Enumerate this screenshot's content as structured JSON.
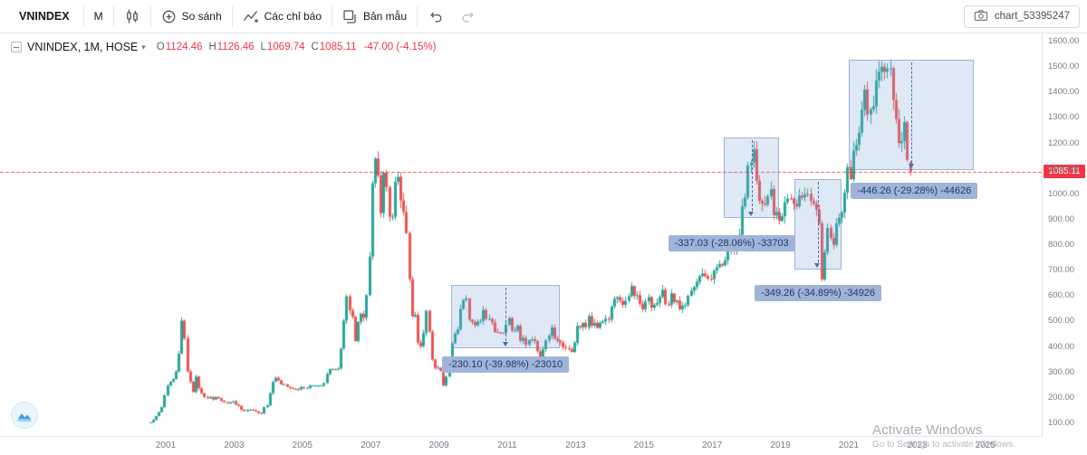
{
  "toolbar": {
    "symbol": "VNINDEX",
    "interval": "M",
    "compare_label": "So sánh",
    "indicators_label": "Các chỉ báo",
    "templates_label": "Bản mẫu",
    "chart_name": "chart_53395247"
  },
  "legend": {
    "title": "VNINDEX, 1M, HOSE",
    "o_label": "O",
    "o_value": "1124.46",
    "h_label": "H",
    "h_value": "1126.46",
    "l_label": "L",
    "l_value": "1069.74",
    "c_label": "C",
    "c_value": "1085.11",
    "change": "-47.00 (-4.15%)"
  },
  "price_axis": {
    "ticks": [
      "1600.00",
      "1500.00",
      "1400.00",
      "1300.00",
      "1200.00",
      "1100.00",
      "1000.00",
      "900.00",
      "800.00",
      "700.00",
      "600.00",
      "500.00",
      "400.00",
      "300.00",
      "200.00",
      "100.00"
    ],
    "last_price_label": "1085.11"
  },
  "time_axis": {
    "ticks": [
      "2001",
      "2003",
      "2005",
      "2007",
      "2009",
      "2011",
      "2013",
      "2015",
      "2017",
      "2019",
      "2021",
      "2023",
      "2025"
    ]
  },
  "watermark": {
    "line1": "Activate Windows",
    "line2": "Go to Settings to activate Windows."
  },
  "colors": {
    "up": "#26a69a",
    "down": "#ef5350",
    "last_price": "#f23645",
    "measure_box_fill": "rgba(120,157,214,0.24)",
    "measure_box_border": "rgba(83,118,178,0.45)",
    "measure_label_bg": "#9fb4d8",
    "measure_label_text": "#21386b",
    "axis_text": "#787b86"
  },
  "chart_data": {
    "type": "candlestick",
    "symbol": "VNINDEX",
    "exchange": "HOSE",
    "interval": "1M",
    "start_month": "2000-07",
    "first_open": 100,
    "price_axis_range": [
      100,
      1600
    ],
    "price_axis_step": 100,
    "x_axis_years": [
      2001,
      2003,
      2005,
      2007,
      2009,
      2011,
      2013,
      2015,
      2017,
      2019,
      2021,
      2023,
      2025
    ],
    "last_price_line": 1085.11,
    "last_candle": {
      "open": 1124.46,
      "high": 1126.46,
      "low": 1069.74,
      "close": 1085.11,
      "change": -47.0,
      "change_pct": -4.15
    },
    "monthly_closes_estimated": [
      {
        "year": 2000,
        "closes": [
          100,
          110,
          125,
          140,
          160,
          207
        ]
      },
      {
        "year": 2001,
        "closes": [
          245,
          260,
          270,
          300,
          370,
          500,
          430,
          300,
          260,
          220,
          280,
          235
        ]
      },
      {
        "year": 2002,
        "closes": [
          215,
          200,
          195,
          200,
          190,
          200,
          195,
          185,
          180,
          175,
          180,
          183
        ]
      },
      {
        "year": 2003,
        "closes": [
          170,
          165,
          150,
          145,
          150,
          150,
          148,
          143,
          137,
          135,
          160,
          167
        ]
      },
      {
        "year": 2004,
        "closes": [
          215,
          260,
          275,
          265,
          250,
          250,
          240,
          235,
          233,
          230,
          230,
          239
        ]
      },
      {
        "year": 2005,
        "closes": [
          235,
          235,
          245,
          245,
          245,
          245,
          245,
          255,
          290,
          310,
          310,
          308
        ]
      },
      {
        "year": 2006,
        "closes": [
          312,
          390,
          500,
          595,
          540,
          515,
          420,
          495,
          527,
          511,
          600,
          752
        ]
      },
      {
        "year": 2007,
        "closes": [
          1040,
          1137,
          1071,
          923,
          1081,
          1025,
          908,
          908,
          1046,
          1065,
          972,
          927
        ]
      },
      {
        "year": 2008,
        "closes": [
          844,
          663,
          516,
          522,
          414,
          399,
          451,
          539,
          456,
          347,
          314,
          315
        ]
      },
      {
        "year": 2009,
        "closes": [
          303,
          245,
          280,
          321,
          411,
          448,
          466,
          546,
          580,
          587,
          504,
          494
        ]
      },
      {
        "year": 2010,
        "closes": [
          482,
          496,
          499,
          542,
          507,
          507,
          493,
          455,
          454,
          452,
          451,
          484
        ]
      },
      {
        "year": 2011,
        "closes": [
          510,
          461,
          461,
          480,
          421,
          432,
          405,
          424,
          427,
          420,
          380,
          351
        ]
      },
      {
        "year": 2012,
        "closes": [
          388,
          423,
          441,
          473,
          429,
          422,
          414,
          396,
          392,
          388,
          377,
          413
        ]
      },
      {
        "year": 2013,
        "closes": [
          479,
          474,
          491,
          474,
          518,
          481,
          491,
          472,
          492,
          497,
          508,
          504
        ]
      },
      {
        "year": 2014,
        "closes": [
          556,
          586,
          592,
          578,
          562,
          578,
          596,
          636,
          598,
          600,
          566,
          545
        ]
      },
      {
        "year": 2015,
        "closes": [
          576,
          592,
          551,
          562,
          569,
          593,
          621,
          564,
          562,
          607,
          573,
          579
        ]
      },
      {
        "year": 2016,
        "closes": [
          545,
          559,
          561,
          598,
          618,
          632,
          652,
          675,
          685,
          675,
          665,
          664
        ]
      },
      {
        "year": 2017,
        "closes": [
          697,
          710,
          722,
          717,
          737,
          776,
          783,
          782,
          804,
          837,
          949,
          984
        ]
      },
      {
        "year": 2018,
        "closes": [
          1110,
          1121,
          1174,
          1050,
          971,
          960,
          956,
          989,
          1017,
          914,
          926,
          892
        ]
      },
      {
        "year": 2019,
        "closes": [
          910,
          965,
          980,
          979,
          959,
          949,
          991,
          984,
          996,
          998,
          970,
          960
        ]
      },
      {
        "year": 2020,
        "closes": [
          936,
          882,
          662,
          769,
          864,
          825,
          798,
          881,
          905,
          925,
          1003,
          1103
        ]
      },
      {
        "year": 2021,
        "closes": [
          1056,
          1168,
          1191,
          1239,
          1328,
          1408,
          1310,
          1331,
          1342,
          1444,
          1478,
          1498
        ]
      },
      {
        "year": 2022,
        "closes": [
          1478,
          1490,
          1492,
          1366,
          1292,
          1197,
          1206,
          1280,
          1132,
          1085.11
        ]
      }
    ],
    "measurements": [
      {
        "label": "-230.10 (-39.98%) -23010",
        "box": {
          "t1": 2009.35,
          "t2": 2012.55,
          "price_top": 640,
          "price_bottom": 390
        },
        "label_anchor": {
          "t": 2010.95,
          "price": 359
        }
      },
      {
        "label": "-337.03 (-28.06%) -33703",
        "box": {
          "t1": 2017.35,
          "t2": 2018.95,
          "price_top": 1220,
          "price_bottom": 905
        },
        "label_anchor": {
          "t": 2017.57,
          "price": 836
        }
      },
      {
        "label": "-349.26 (-34.89%) -34926",
        "box": {
          "t1": 2019.4,
          "t2": 2020.79,
          "price_top": 1055,
          "price_bottom": 700
        },
        "label_anchor": {
          "t": 2020.1,
          "price": 640
        }
      },
      {
        "label": "-446.26 (-29.28%) -44626",
        "box": {
          "t1": 2021.0,
          "t2": 2024.67,
          "price_top": 1525,
          "price_bottom": 1090
        },
        "label_anchor": {
          "t": 2022.92,
          "price": 1042
        }
      }
    ]
  }
}
